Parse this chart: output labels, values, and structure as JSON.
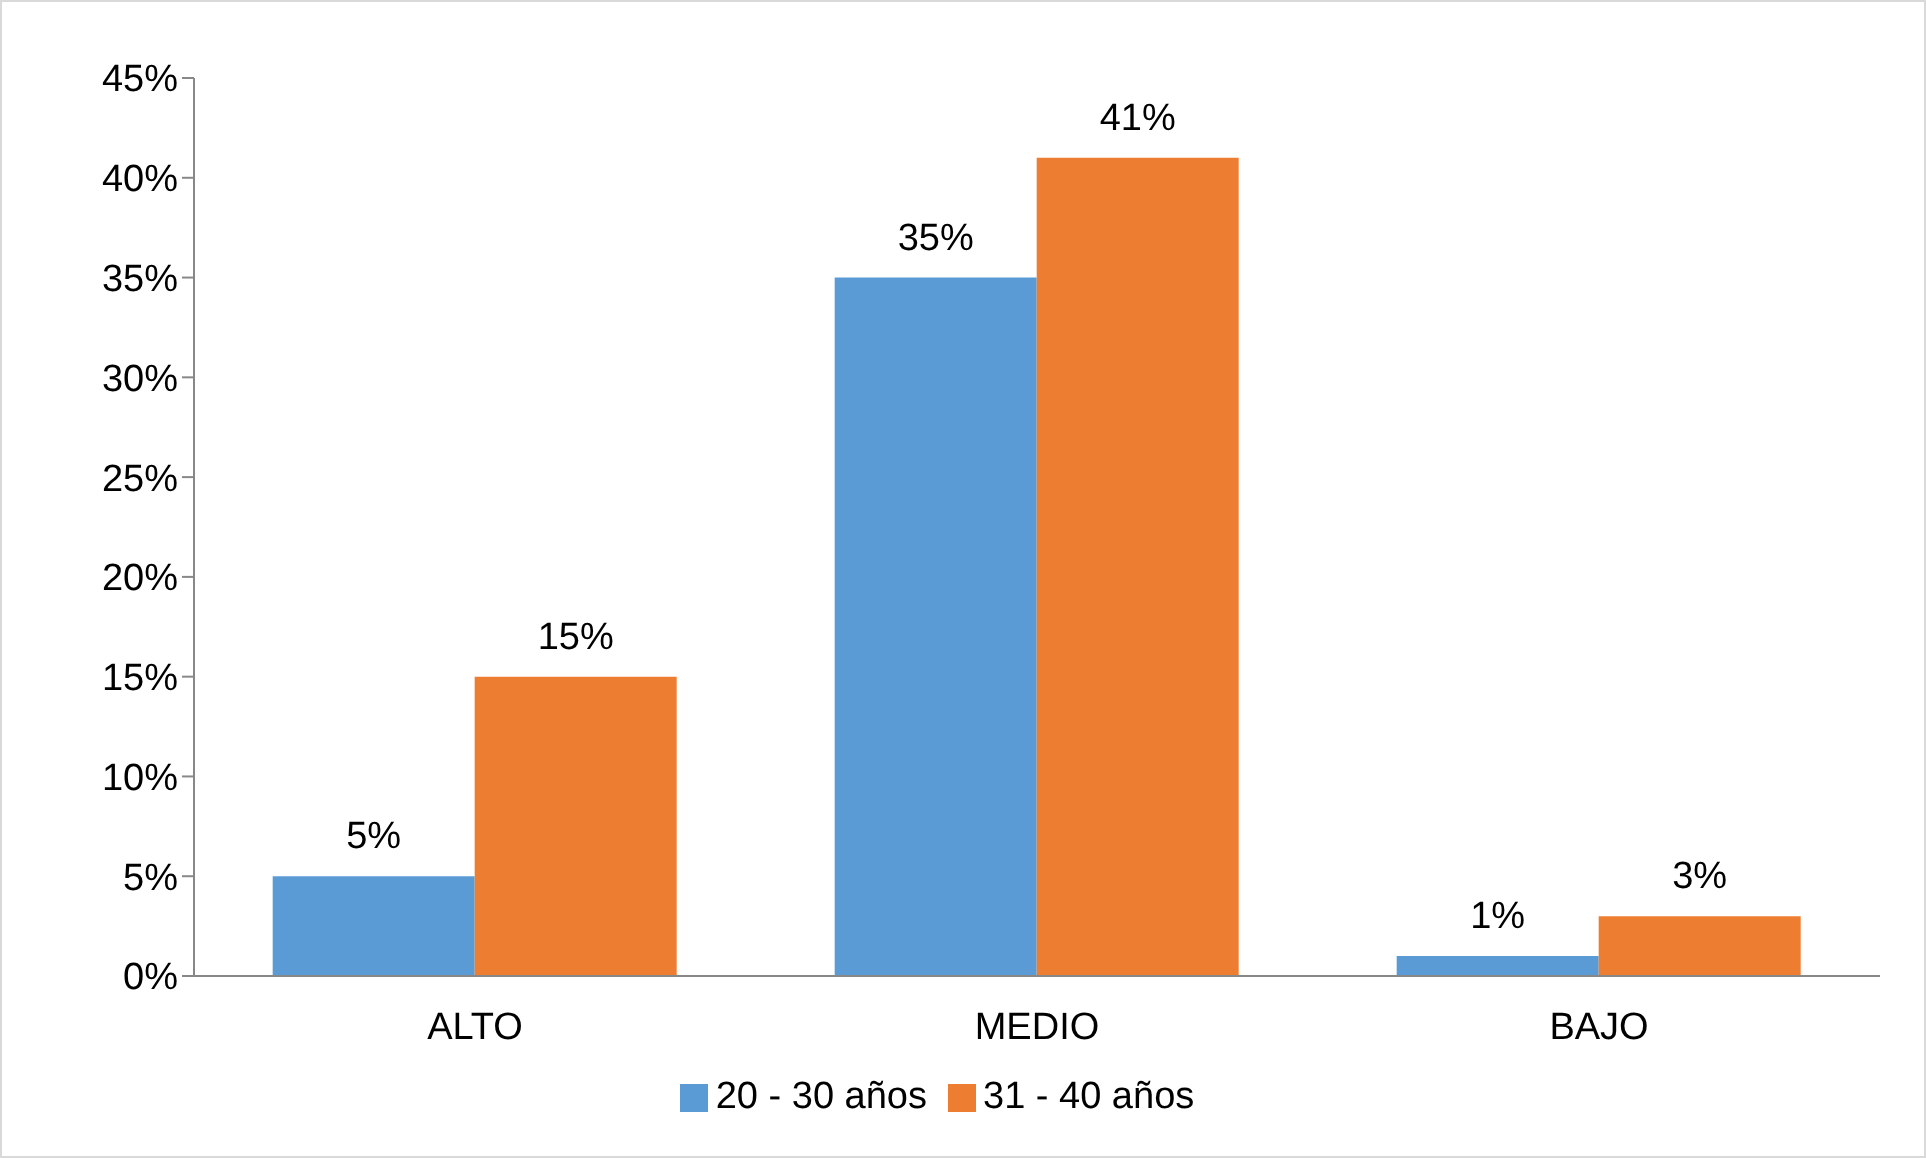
{
  "chart_data": {
    "type": "bar",
    "categories": [
      "ALTO",
      "MEDIO",
      "BAJO"
    ],
    "series": [
      {
        "name": "20 - 30 años",
        "color": "#5b9bd5",
        "values": [
          5,
          35,
          1
        ],
        "value_labels": [
          "5%",
          "35%",
          "1%"
        ]
      },
      {
        "name": "31 - 40 años",
        "color": "#ed7d31",
        "values": [
          15,
          41,
          3
        ],
        "value_labels": [
          "15%",
          "41%",
          "3%"
        ]
      }
    ],
    "ylim": [
      0,
      45
    ],
    "yticks": [
      {
        "value": 0,
        "label": "0%"
      },
      {
        "value": 5,
        "label": "5%"
      },
      {
        "value": 10,
        "label": "10%"
      },
      {
        "value": 15,
        "label": "15%"
      },
      {
        "value": 20,
        "label": "20%"
      },
      {
        "value": 25,
        "label": "25%"
      },
      {
        "value": 30,
        "label": "30%"
      },
      {
        "value": 35,
        "label": "35%"
      },
      {
        "value": 40,
        "label": "40%"
      },
      {
        "value": 45,
        "label": "45%"
      }
    ],
    "grid": false,
    "legend": "bottom"
  }
}
